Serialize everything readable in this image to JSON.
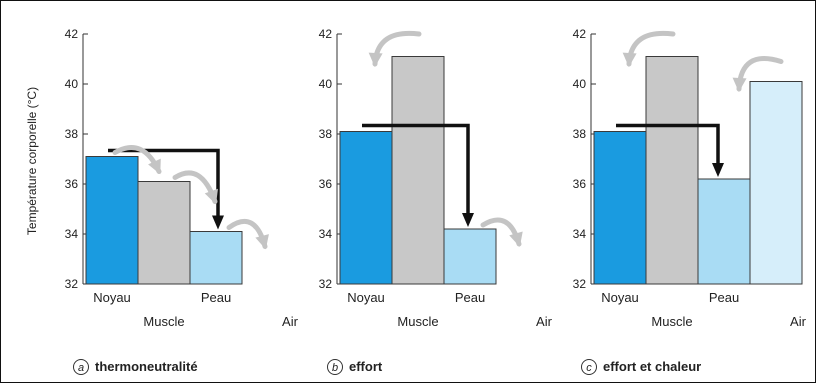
{
  "figure": {
    "ylabel": "Température corporelle (°C)"
  },
  "colors": {
    "noyau": "#1a9be0",
    "muscle": "#c8c8c8",
    "peau": "#a9dcf4",
    "air": "#d6eefa",
    "arrow_black": "#111111",
    "arrow_grey": "#c4c4c4"
  },
  "chart_data": [
    {
      "type": "bar",
      "panel_letter": "a",
      "caption": "thermoneutralité",
      "categories": [
        "Noyau",
        "Muscle",
        "Peau",
        "Air"
      ],
      "values": [
        37.1,
        36.1,
        34.1,
        null
      ],
      "ylim": [
        32,
        42
      ],
      "yticks": [
        "32",
        "34",
        "36",
        "38",
        "40",
        "42"
      ],
      "ylabel": "Température corporelle (°C)"
    },
    {
      "type": "bar",
      "panel_letter": "b",
      "caption": "effort",
      "categories": [
        "Noyau",
        "Muscle",
        "Peau",
        "Air"
      ],
      "values": [
        38.1,
        41.1,
        34.2,
        null
      ],
      "ylim": [
        32,
        42
      ],
      "yticks": [
        "32",
        "34",
        "36",
        "38",
        "40",
        "42"
      ]
    },
    {
      "type": "bar",
      "panel_letter": "c",
      "caption": "effort et chaleur",
      "categories": [
        "Noyau",
        "Muscle",
        "Peau",
        "Air"
      ],
      "values": [
        38.1,
        41.1,
        36.2,
        40.1
      ],
      "ylim": [
        32,
        42
      ],
      "yticks": [
        "32",
        "34",
        "36",
        "38",
        "40",
        "42"
      ]
    }
  ]
}
